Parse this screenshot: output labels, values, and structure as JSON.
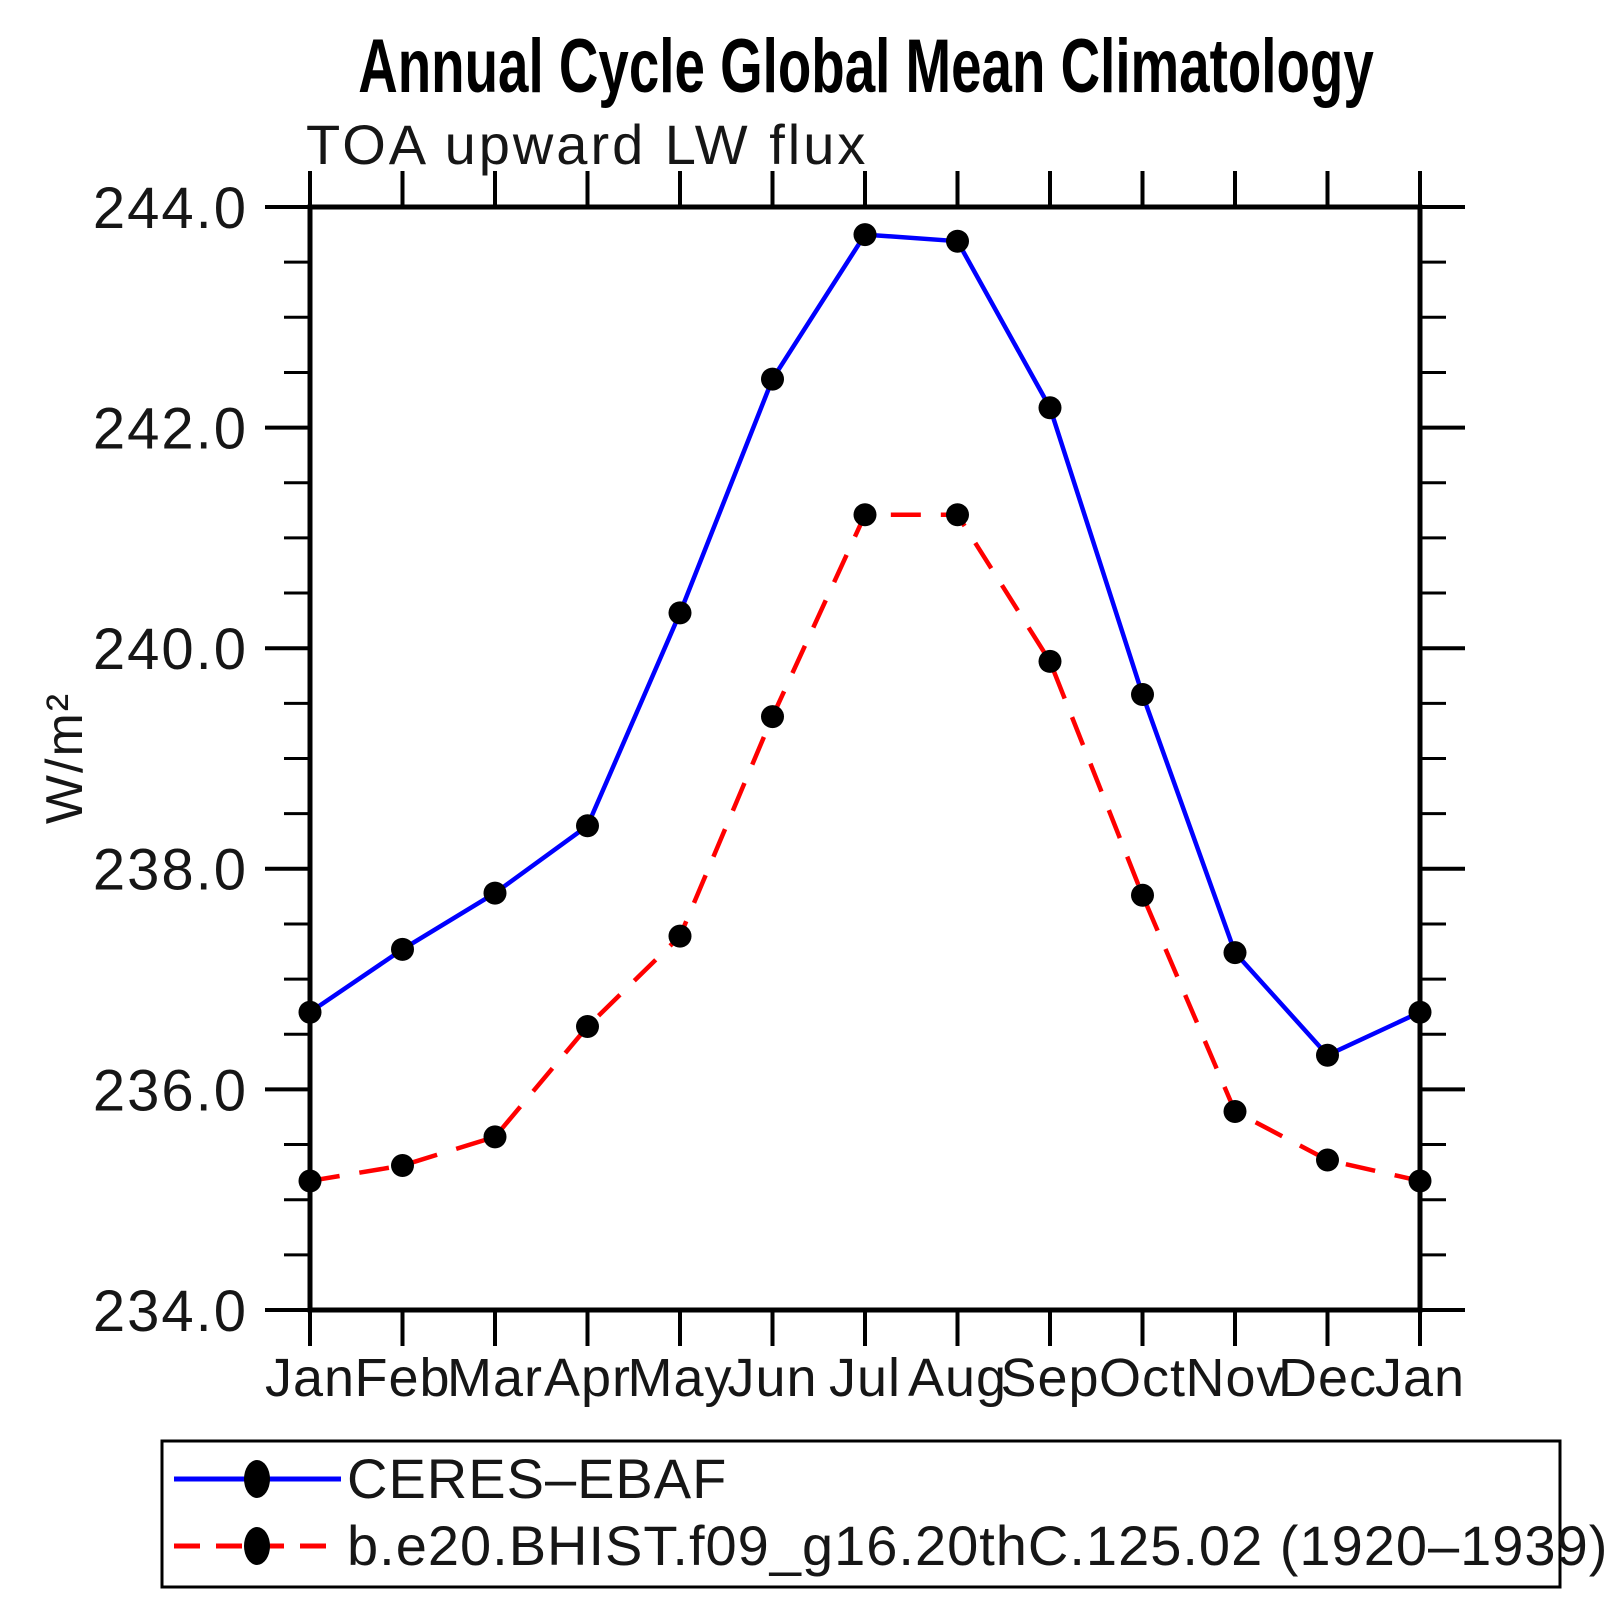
{
  "title": "Annual Cycle Global Mean Climatology",
  "subtitle": "TOA upward LW flux",
  "ylabel": "W/m²",
  "colors": {
    "obs_line": "#0000ff",
    "model_line": "#ff0000",
    "marker": "#000000",
    "axis": "#000000",
    "background": "#ffffff"
  },
  "legend": {
    "position": "bottom",
    "boxed": true,
    "entries": [
      {
        "label": "CERES–EBAF",
        "line": "solid",
        "color": "#0000ff",
        "marker": "circle"
      },
      {
        "label": "b.e20.BHIST.f09_g16.20thC.125.02 (1920–1939)",
        "line": "dashed",
        "color": "#ff0000",
        "marker": "circle"
      }
    ]
  },
  "chart_data": {
    "type": "line",
    "categories": [
      "Jan",
      "Feb",
      "Mar",
      "Apr",
      "May",
      "Jun",
      "Jul",
      "Aug",
      "Sep",
      "Oct",
      "Nov",
      "Dec",
      "Jan"
    ],
    "series": [
      {
        "name": "CERES–EBAF",
        "color": "#0000ff",
        "line": "solid",
        "marker": "circle",
        "values": [
          236.7,
          237.27,
          237.78,
          238.39,
          240.32,
          242.44,
          243.75,
          243.69,
          242.18,
          239.58,
          237.24,
          236.31,
          236.7
        ]
      },
      {
        "name": "b.e20.BHIST.f09_g16.20thC.125.02 (1920–1939)",
        "color": "#ff0000",
        "line": "dashed",
        "marker": "circle",
        "values": [
          235.17,
          235.31,
          235.57,
          236.57,
          237.39,
          239.38,
          241.21,
          241.21,
          239.88,
          237.76,
          235.8,
          235.36,
          235.17
        ]
      }
    ],
    "ylim": [
      234.0,
      244.0
    ],
    "yticks_major": [
      234.0,
      236.0,
      238.0,
      240.0,
      242.0,
      244.0
    ],
    "ytick_labels": [
      "234.0",
      "236.0",
      "238.0",
      "240.0",
      "242.0",
      "244.0"
    ],
    "y_minor_step": 0.5,
    "xlabel": "",
    "grid": false,
    "legend_position": "bottom"
  }
}
